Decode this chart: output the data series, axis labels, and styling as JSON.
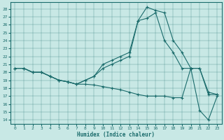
{
  "xlabel": "Humidex (Indice chaleur)",
  "background_color": "#c8e8e5",
  "line_color": "#1a6b6b",
  "xlim": [
    -0.5,
    23.5
  ],
  "ylim": [
    13.5,
    28.8
  ],
  "yticks": [
    14,
    15,
    16,
    17,
    18,
    19,
    20,
    21,
    22,
    23,
    24,
    25,
    26,
    27,
    28
  ],
  "xticks": [
    0,
    1,
    2,
    3,
    4,
    5,
    6,
    7,
    8,
    9,
    10,
    11,
    12,
    13,
    14,
    15,
    16,
    17,
    18,
    19,
    20,
    21,
    22,
    23
  ],
  "series1_x": [
    0,
    1,
    2,
    3,
    4,
    5,
    6,
    7,
    8,
    9,
    10,
    11,
    12,
    13,
    14,
    15,
    16,
    17,
    18,
    19,
    20,
    21,
    22,
    23
  ],
  "series1_y": [
    20.5,
    20.5,
    20.0,
    20.0,
    19.5,
    19.0,
    18.8,
    18.5,
    19.0,
    19.5,
    21.0,
    21.5,
    22.0,
    22.5,
    26.5,
    28.2,
    27.8,
    27.5,
    24.0,
    22.5,
    20.5,
    20.5,
    17.2,
    17.2
  ],
  "series2_x": [
    0,
    1,
    2,
    3,
    4,
    5,
    6,
    7,
    8,
    9,
    10,
    11,
    12,
    13,
    14,
    15,
    16,
    17,
    18,
    19,
    20,
    21,
    22,
    23
  ],
  "series2_y": [
    20.5,
    20.5,
    20.0,
    20.0,
    19.5,
    19.0,
    18.8,
    18.5,
    18.5,
    18.4,
    18.2,
    18.0,
    17.8,
    17.5,
    17.2,
    17.0,
    17.0,
    17.0,
    16.8,
    16.8,
    20.5,
    15.2,
    14.0,
    17.0
  ],
  "series3_x": [
    0,
    1,
    2,
    3,
    4,
    5,
    6,
    7,
    8,
    9,
    10,
    11,
    12,
    13,
    14,
    15,
    16,
    17,
    18,
    19,
    20,
    21,
    22,
    23
  ],
  "series3_y": [
    20.5,
    20.5,
    20.0,
    20.0,
    19.5,
    19.0,
    18.8,
    18.5,
    19.0,
    19.5,
    20.5,
    21.0,
    21.5,
    22.0,
    26.5,
    26.8,
    27.5,
    24.0,
    22.5,
    20.5,
    20.5,
    20.5,
    17.5,
    17.2
  ]
}
